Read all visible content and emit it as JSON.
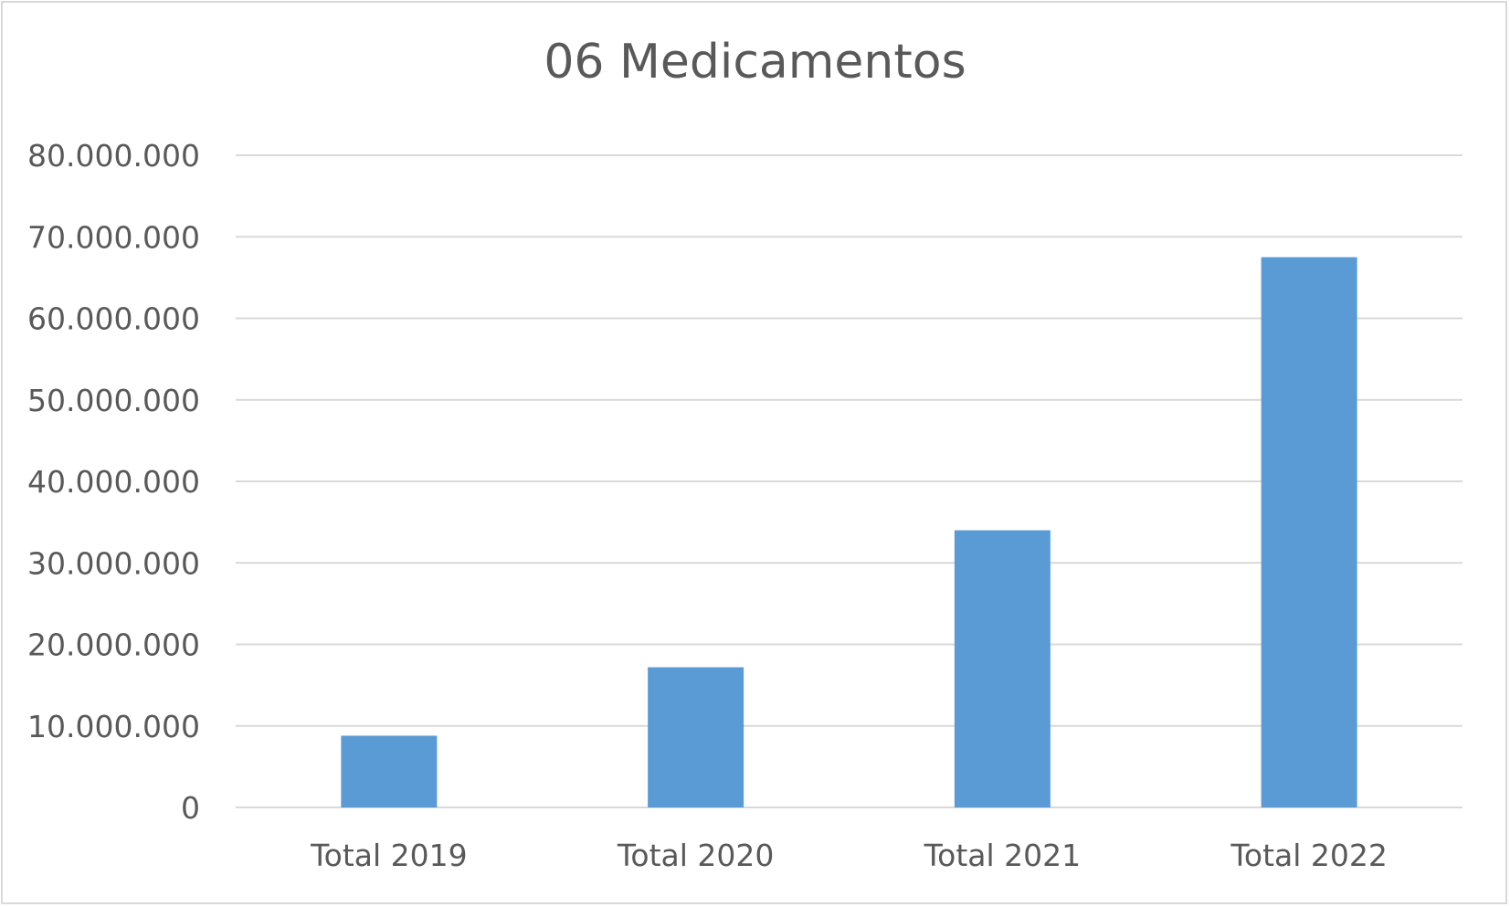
{
  "chart_data": {
    "type": "bar",
    "title": "06 Medicamentos",
    "categories": [
      "Total 2019",
      "Total 2020",
      "Total 2021",
      "Total 2022"
    ],
    "values": [
      8800000,
      17200000,
      34000000,
      67500000
    ],
    "xlabel": "",
    "ylabel": "",
    "ylim": [
      0,
      80000000
    ],
    "yticks": [
      0,
      10000000,
      20000000,
      30000000,
      40000000,
      50000000,
      60000000,
      70000000,
      80000000
    ],
    "ytick_labels": [
      "0",
      "10.000.000",
      "20.000.000",
      "30.000.000",
      "40.000.000",
      "50.000.000",
      "60.000.000",
      "70.000.000",
      "80.000.000"
    ],
    "grid": true,
    "legend": "none",
    "colors": {
      "bar": "#5b9bd5",
      "grid": "#d9d9d9",
      "text": "#595959"
    }
  }
}
